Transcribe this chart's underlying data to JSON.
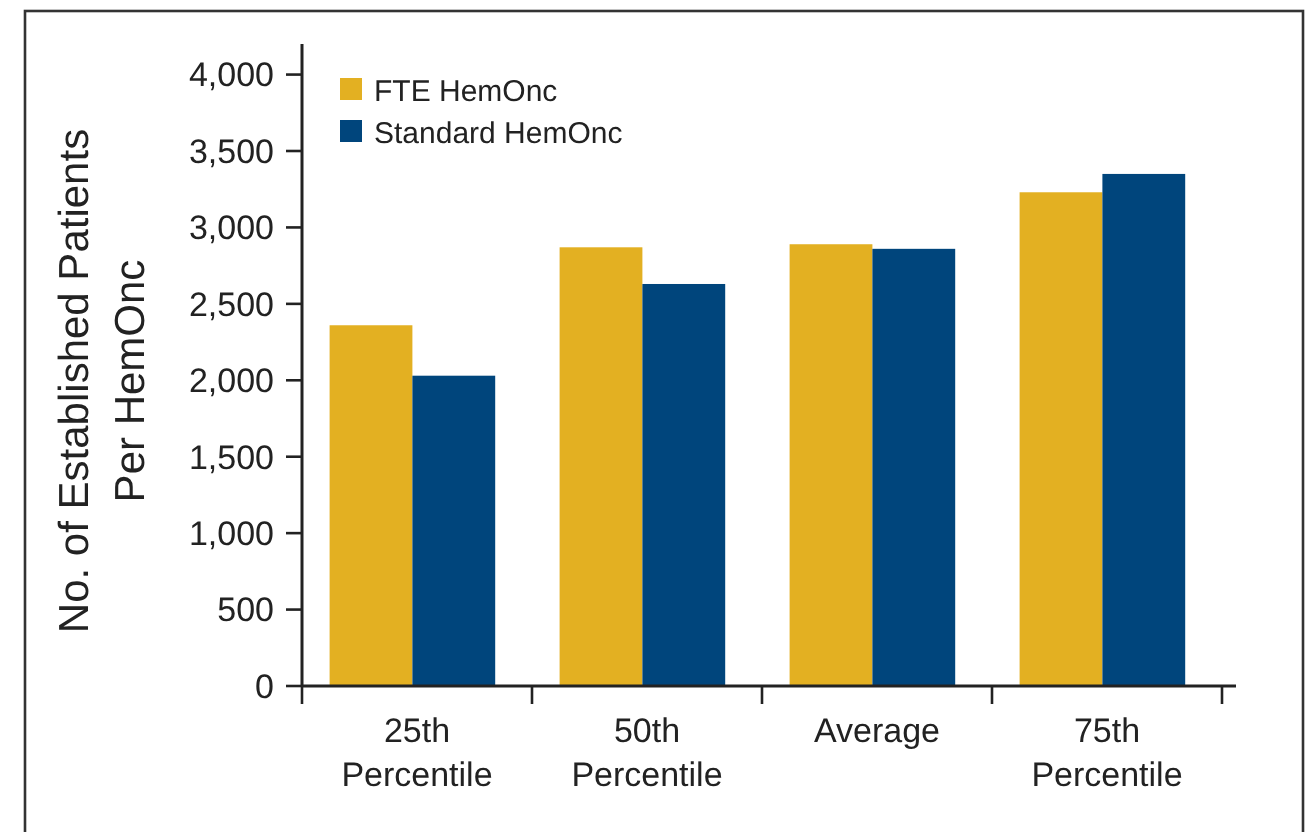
{
  "chart_data": {
    "type": "bar",
    "ylabel": "No. of Established Patients Per HemOnc",
    "categories": [
      "25th Percentile",
      "50th Percentile",
      "Average",
      "75th Percentile"
    ],
    "series": [
      {
        "name": "FTE HemOnc",
        "color": "#e3b022",
        "values": [
          2360,
          2870,
          2890,
          3230
        ]
      },
      {
        "name": "Standard HemOnc",
        "color": "#00457c",
        "values": [
          2030,
          2630,
          2860,
          3350
        ]
      }
    ],
    "ylim": [
      0,
      4200
    ],
    "yticks": [
      0,
      {
        "value": 500,
        "label": "500"
      },
      {
        "value": 1000,
        "label": "1,000"
      },
      {
        "value": 1500,
        "label": "1,500"
      },
      {
        "value": 2000,
        "label": "2,000"
      },
      {
        "value": 2500,
        "label": "2,500"
      },
      {
        "value": 3000,
        "label": "3,000"
      },
      {
        "value": 3500,
        "label": "3,500"
      },
      {
        "value": 4000,
        "label": "4,000"
      }
    ],
    "grid": false,
    "legend": "top left"
  }
}
